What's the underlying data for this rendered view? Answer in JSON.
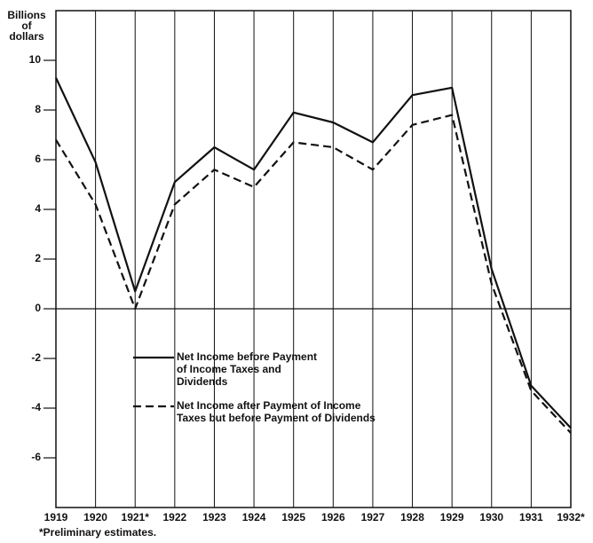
{
  "chart_data": {
    "type": "line",
    "y_label": [
      "Billions",
      "of",
      "dollars"
    ],
    "categories": [
      "1919",
      "1920",
      "1921*",
      "1922",
      "1923",
      "1924",
      "1925",
      "1926",
      "1927",
      "1928",
      "1929",
      "1930",
      "1931",
      "1932*"
    ],
    "series": [
      {
        "name": "Net Income before Payment of Income Taxes and Dividends",
        "color": "#111111",
        "dash": "solid",
        "values": [
          9.3,
          5.9,
          0.7,
          5.1,
          6.5,
          5.6,
          7.9,
          7.5,
          6.7,
          8.6,
          8.9,
          1.6,
          -3.1,
          -4.8
        ]
      },
      {
        "name": "Net Income after Payment of Income Taxes but before Payment of Dividends",
        "color": "#111111",
        "dash": "dashed",
        "values": [
          6.8,
          4.2,
          0.0,
          4.2,
          5.6,
          4.9,
          6.7,
          6.5,
          5.6,
          7.4,
          7.8,
          1.0,
          -3.3,
          -5.0
        ]
      }
    ],
    "ylim": [
      -8,
      12
    ],
    "yticks": [
      -6,
      -4,
      -2,
      0,
      2,
      4,
      6,
      8,
      10
    ],
    "grid": true,
    "footnote": "*Preliminary estimates."
  }
}
